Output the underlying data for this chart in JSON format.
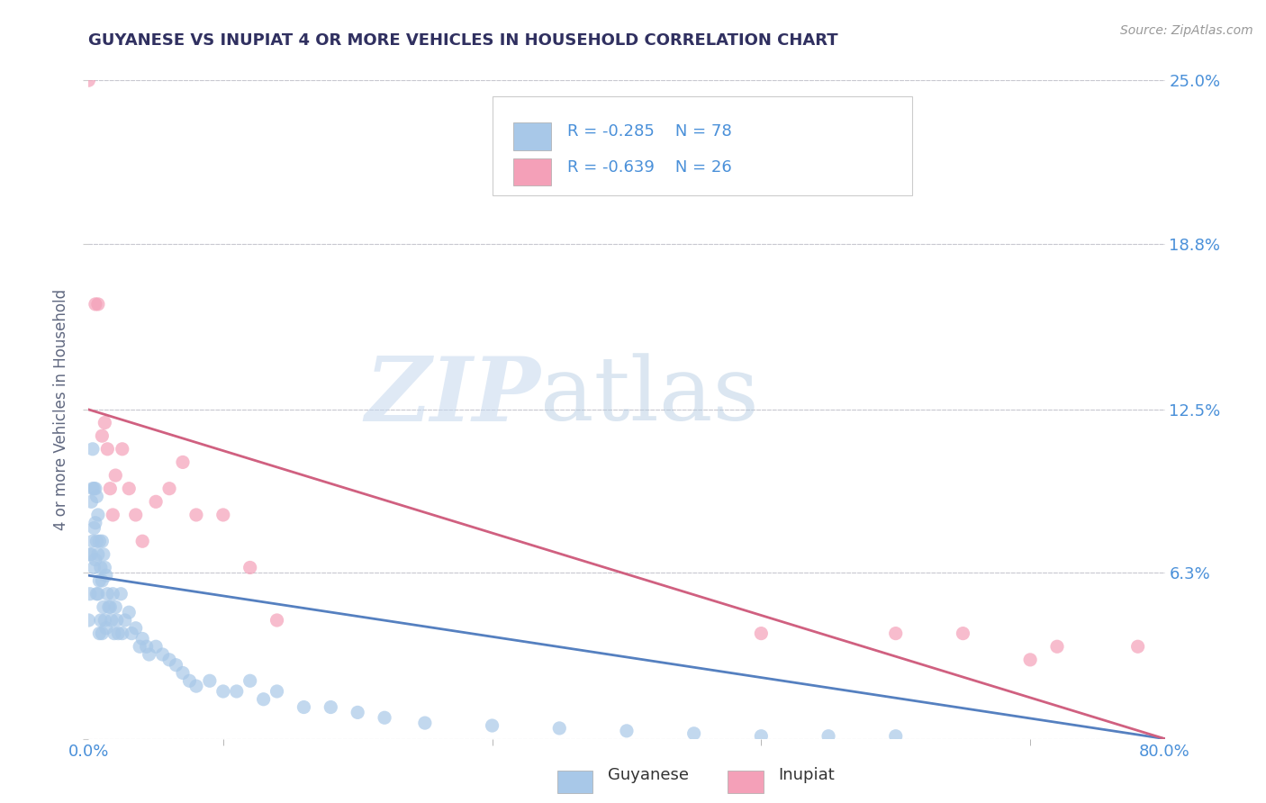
{
  "title": "GUYANESE VS INUPIAT 4 OR MORE VEHICLES IN HOUSEHOLD CORRELATION CHART",
  "source": "Source: ZipAtlas.com",
  "ylabel": "4 or more Vehicles in Household",
  "xlim": [
    0.0,
    0.8
  ],
  "ylim": [
    0.0,
    0.25
  ],
  "ytick_positions": [
    0.0,
    0.063,
    0.125,
    0.188,
    0.25
  ],
  "ytick_labels": [
    "",
    "6.3%",
    "12.5%",
    "18.8%",
    "25.0%"
  ],
  "blue_color": "#a8c8e8",
  "pink_color": "#f4a0b8",
  "blue_line_color": "#5580c0",
  "pink_line_color": "#d06080",
  "title_color": "#303060",
  "axis_label_color": "#606880",
  "tick_label_color": "#4a90d9",
  "watermark_zip": "ZIP",
  "watermark_atlas": "atlas",
  "blue_scatter_x": [
    0.0,
    0.001,
    0.001,
    0.002,
    0.002,
    0.003,
    0.003,
    0.003,
    0.004,
    0.004,
    0.004,
    0.005,
    0.005,
    0.005,
    0.006,
    0.006,
    0.006,
    0.007,
    0.007,
    0.007,
    0.008,
    0.008,
    0.008,
    0.009,
    0.009,
    0.01,
    0.01,
    0.01,
    0.011,
    0.011,
    0.012,
    0.012,
    0.013,
    0.013,
    0.014,
    0.015,
    0.016,
    0.017,
    0.018,
    0.019,
    0.02,
    0.021,
    0.022,
    0.024,
    0.025,
    0.027,
    0.03,
    0.032,
    0.035,
    0.038,
    0.04,
    0.043,
    0.045,
    0.05,
    0.055,
    0.06,
    0.065,
    0.07,
    0.075,
    0.08,
    0.09,
    0.1,
    0.11,
    0.12,
    0.13,
    0.14,
    0.16,
    0.18,
    0.2,
    0.22,
    0.25,
    0.3,
    0.35,
    0.4,
    0.45,
    0.5,
    0.55,
    0.6
  ],
  "blue_scatter_y": [
    0.045,
    0.07,
    0.055,
    0.09,
    0.07,
    0.11,
    0.095,
    0.075,
    0.095,
    0.08,
    0.065,
    0.095,
    0.082,
    0.068,
    0.092,
    0.075,
    0.055,
    0.085,
    0.07,
    0.055,
    0.075,
    0.06,
    0.04,
    0.065,
    0.045,
    0.075,
    0.06,
    0.04,
    0.07,
    0.05,
    0.065,
    0.045,
    0.062,
    0.042,
    0.055,
    0.05,
    0.05,
    0.045,
    0.055,
    0.04,
    0.05,
    0.045,
    0.04,
    0.055,
    0.04,
    0.045,
    0.048,
    0.04,
    0.042,
    0.035,
    0.038,
    0.035,
    0.032,
    0.035,
    0.032,
    0.03,
    0.028,
    0.025,
    0.022,
    0.02,
    0.022,
    0.018,
    0.018,
    0.022,
    0.015,
    0.018,
    0.012,
    0.012,
    0.01,
    0.008,
    0.006,
    0.005,
    0.004,
    0.003,
    0.002,
    0.001,
    0.001,
    0.001
  ],
  "pink_scatter_x": [
    0.0,
    0.005,
    0.007,
    0.01,
    0.012,
    0.014,
    0.016,
    0.018,
    0.02,
    0.025,
    0.03,
    0.035,
    0.04,
    0.05,
    0.06,
    0.07,
    0.08,
    0.1,
    0.12,
    0.14,
    0.5,
    0.6,
    0.65,
    0.7,
    0.72,
    0.78
  ],
  "pink_scatter_y": [
    0.25,
    0.165,
    0.165,
    0.115,
    0.12,
    0.11,
    0.095,
    0.085,
    0.1,
    0.11,
    0.095,
    0.085,
    0.075,
    0.09,
    0.095,
    0.105,
    0.085,
    0.085,
    0.065,
    0.045,
    0.04,
    0.04,
    0.04,
    0.03,
    0.035,
    0.035
  ],
  "blue_line_x0": 0.0,
  "blue_line_y0": 0.062,
  "blue_line_x1": 0.8,
  "blue_line_y1": 0.0,
  "pink_line_x0": 0.0,
  "pink_line_y0": 0.125,
  "pink_line_x1": 0.8,
  "pink_line_y1": 0.0
}
